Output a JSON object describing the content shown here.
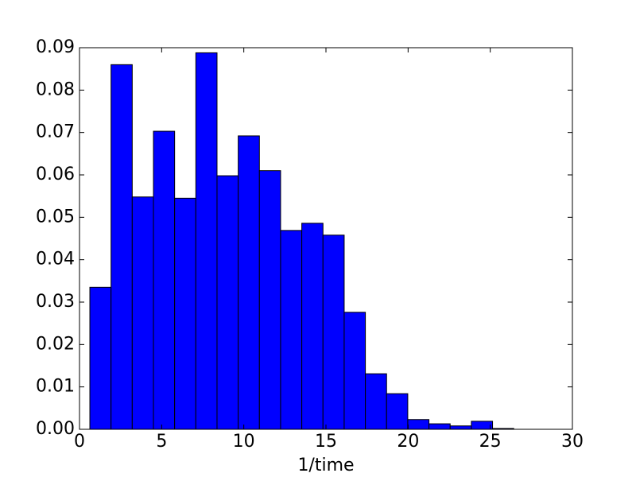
{
  "chart_data": {
    "type": "histogram",
    "xlabel": "1/time",
    "bins": [
      0.63,
      1.92,
      3.21,
      4.5,
      5.79,
      7.08,
      8.37,
      9.66,
      10.95,
      12.24,
      13.53,
      14.82,
      16.11,
      17.4,
      18.69,
      19.98,
      21.27,
      22.56,
      23.85,
      25.14,
      26.43
    ],
    "values": [
      0.0335,
      0.086,
      0.0548,
      0.0703,
      0.0545,
      0.0888,
      0.0598,
      0.0692,
      0.061,
      0.0469,
      0.0486,
      0.0458,
      0.0276,
      0.0131,
      0.0084,
      0.0023,
      0.0013,
      0.0008,
      0.0019,
      0.0002
    ],
    "color": "#0000ff",
    "xlim": [
      0,
      30
    ],
    "xticks": [
      0,
      5,
      10,
      15,
      20,
      25,
      30
    ],
    "ylim": [
      0,
      0.09
    ],
    "yticks": [
      {
        "value": 0,
        "label": "0.00"
      },
      0.01,
      0.02,
      0.03,
      0.04,
      0.05,
      0.06,
      0.07,
      0.08,
      0.09
    ]
  }
}
